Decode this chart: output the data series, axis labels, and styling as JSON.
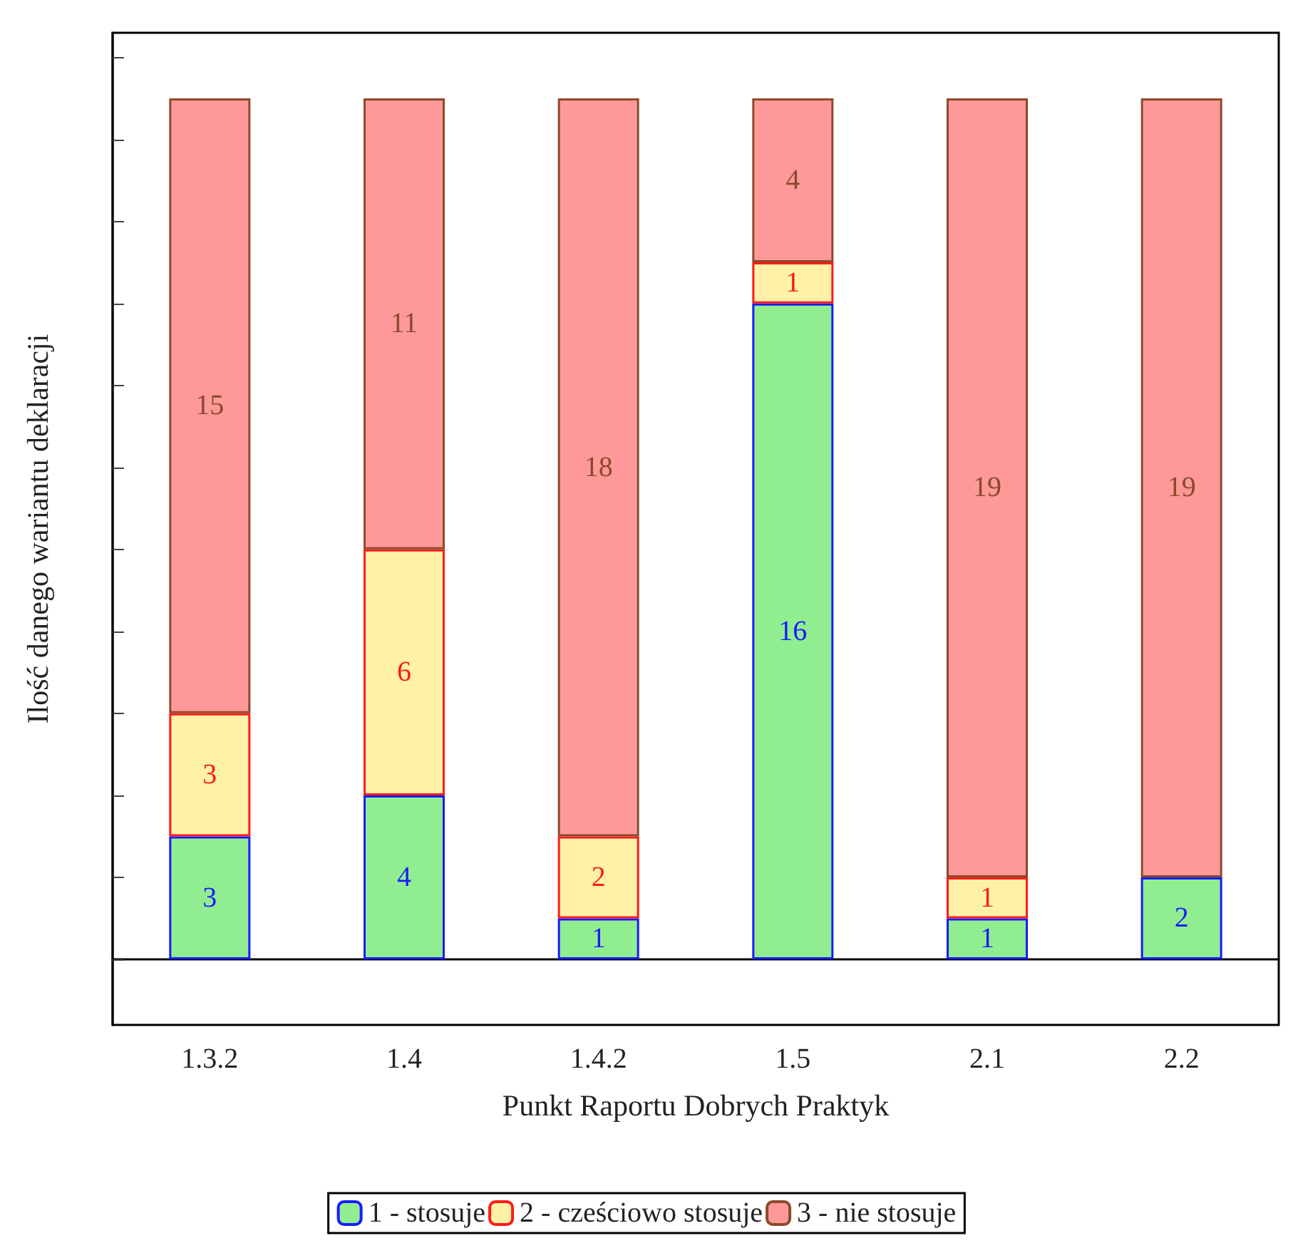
{
  "chart_data": {
    "type": "bar",
    "stacked": true,
    "xlabel": "Punkt Raportu Dobrych Praktyk",
    "ylabel": "Ilość danego wariantu deklaracji",
    "categories": [
      "1.3.2",
      "1.4",
      "1.4.2",
      "1.5",
      "2.1",
      "2.2"
    ],
    "series": [
      {
        "name": "1 - stosuje",
        "color": "#90ee90",
        "values": [
          3,
          4,
          1,
          16,
          1,
          2
        ]
      },
      {
        "name": "2 - cześciowo stosuje",
        "color": "#fff2a8",
        "values": [
          3,
          6,
          2,
          1,
          1,
          null
        ]
      },
      {
        "name": "3 - nie stosuje",
        "color": "#ff9999",
        "values": [
          15,
          11,
          18,
          4,
          19,
          19
        ]
      }
    ],
    "ylim": [
      -1.6,
      22.6
    ],
    "yticks": [
      {
        "value": 0,
        "label": null
      },
      {
        "value": 2,
        "label": null
      },
      {
        "value": 4,
        "label": null
      },
      {
        "value": 6,
        "label": null
      },
      {
        "value": 8,
        "label": null
      },
      {
        "value": 10,
        "label": null
      },
      {
        "value": 12,
        "label": null
      },
      {
        "value": 14,
        "label": null
      },
      {
        "value": 16,
        "label": null
      },
      {
        "value": 18,
        "label": null
      },
      {
        "value": 20,
        "label": null
      },
      {
        "value": 22,
        "label": null
      }
    ],
    "tick_labels": "x",
    "data_labels": true,
    "legend": "bottom",
    "grid": false
  }
}
